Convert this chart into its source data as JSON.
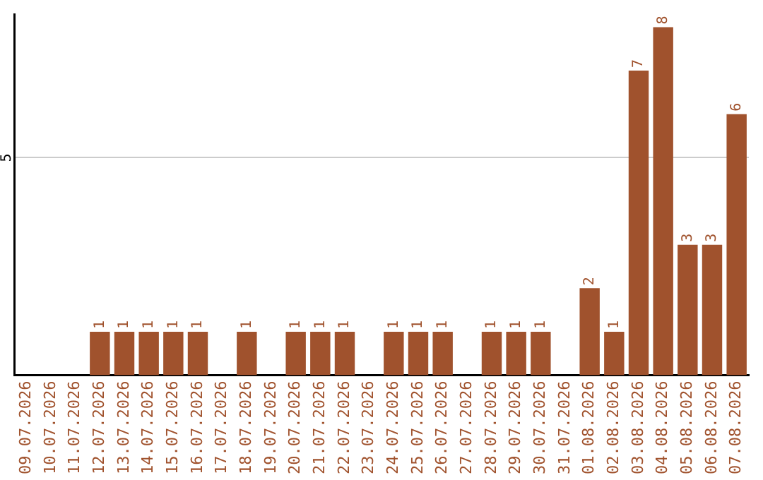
{
  "chart_data": {
    "type": "bar",
    "categories": [
      "09.07.2026",
      "10.07.2026",
      "11.07.2026",
      "12.07.2026",
      "13.07.2026",
      "14.07.2026",
      "15.07.2026",
      "16.07.2026",
      "17.07.2026",
      "18.07.2026",
      "19.07.2026",
      "20.07.2026",
      "21.07.2026",
      "22.07.2026",
      "23.07.2026",
      "24.07.2026",
      "25.07.2026",
      "26.07.2026",
      "27.07.2026",
      "28.07.2026",
      "29.07.2026",
      "30.07.2026",
      "31.07.2026",
      "01.08.2026",
      "02.08.2026",
      "03.08.2026",
      "04.08.2026",
      "05.08.2026",
      "06.08.2026",
      "07.08.2026"
    ],
    "values": [
      0,
      0,
      0,
      1,
      1,
      1,
      1,
      1,
      0,
      1,
      0,
      1,
      1,
      1,
      0,
      1,
      1,
      1,
      0,
      1,
      1,
      1,
      0,
      2,
      1,
      7,
      8,
      3,
      3,
      6
    ],
    "value_labels": [
      null,
      null,
      null,
      "1",
      "1",
      "1",
      "1",
      "1",
      null,
      "1",
      null,
      "1",
      "1",
      "1",
      null,
      "1",
      "1",
      "1",
      null,
      "1",
      "1",
      "1",
      null,
      "2",
      "1",
      "7",
      "8",
      "3",
      "3",
      "6"
    ],
    "color": "#a0522d",
    "ylim": [
      0,
      8.3
    ],
    "yticks": [
      5
    ],
    "grid": "y",
    "legend": false
  }
}
